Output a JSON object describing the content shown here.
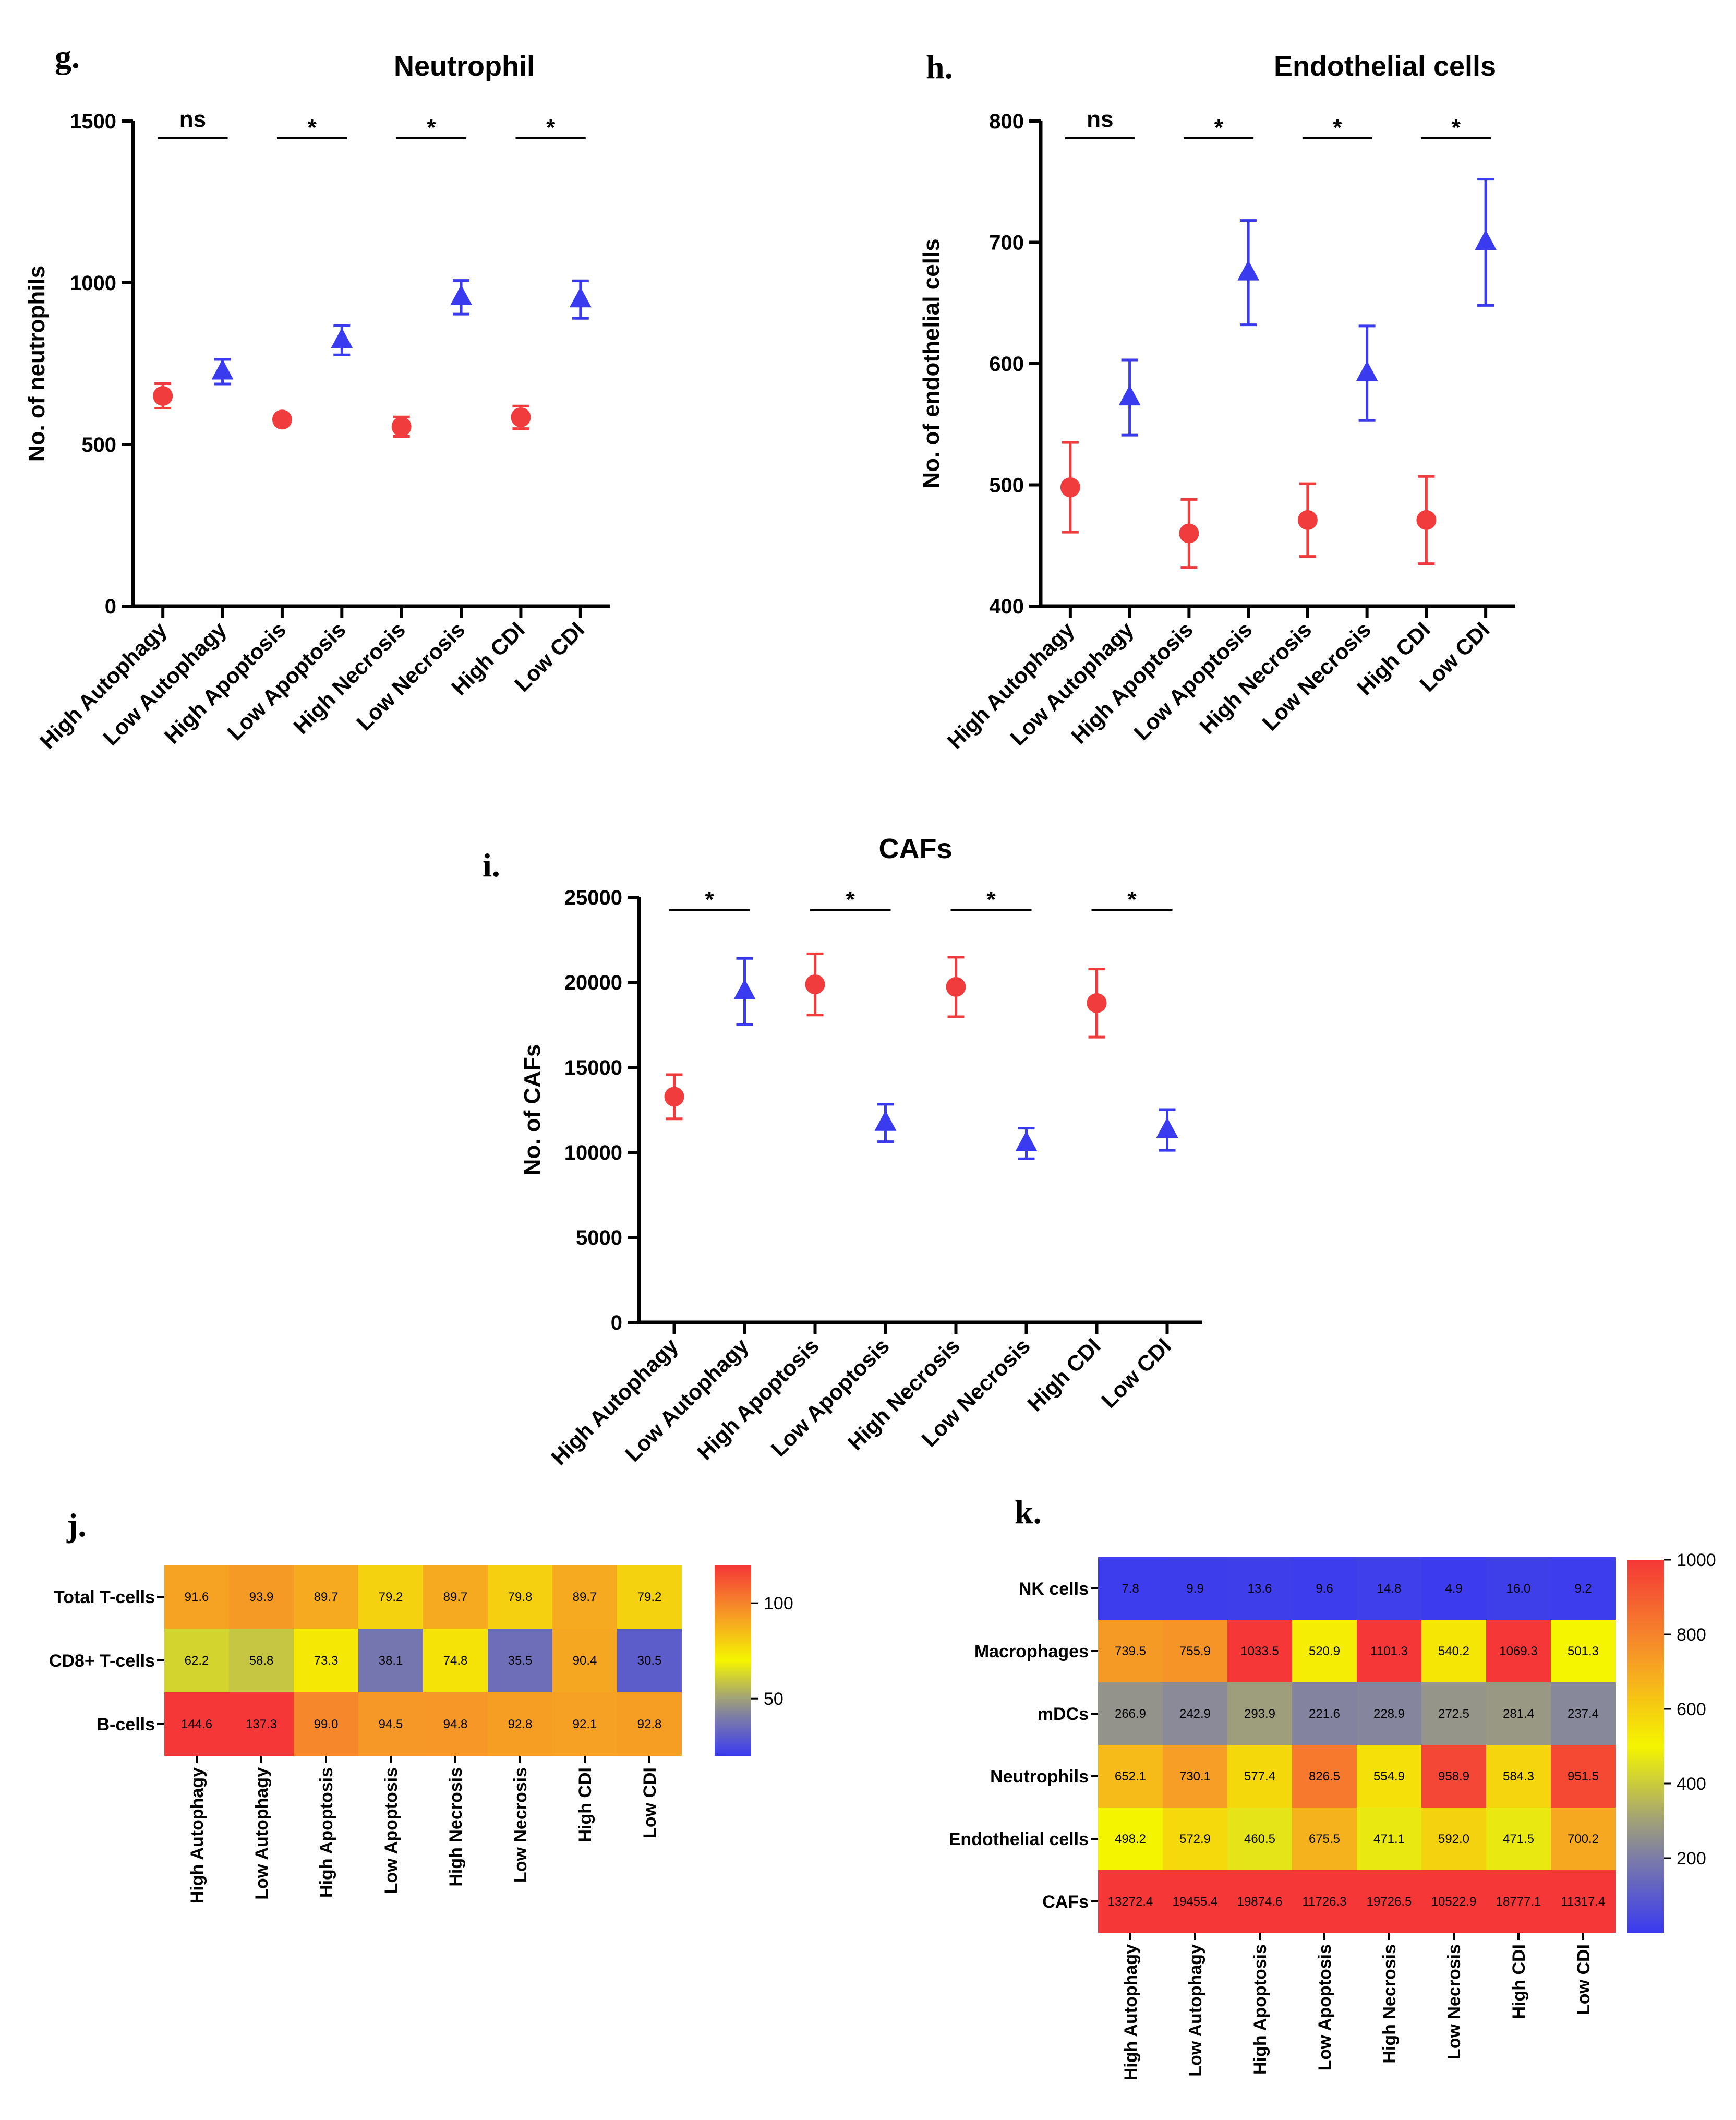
{
  "chart_data": [
    {
      "id": "g",
      "type": "scatter",
      "panel_label": "g.",
      "title": "Neutrophil",
      "ylabel": "No. of neutrophils",
      "xlabel": "",
      "ylim": [
        0,
        1500
      ],
      "yticks": [
        0,
        500,
        1000,
        1500
      ],
      "categories": [
        "High Autophagy",
        "Low Autophagy",
        "High Apoptosis",
        "Low Apoptosis",
        "High Necrosis",
        "Low Necrosis",
        "High CDI",
        "Low CDI"
      ],
      "points": [
        {
          "value": 650,
          "err": 38,
          "marker": "circle",
          "color": "#f03c3c"
        },
        {
          "value": 725,
          "err": 38,
          "marker": "triangle",
          "color": "#3a3aee"
        },
        {
          "value": 577,
          "err": 0,
          "marker": "circle",
          "color": "#f03c3c"
        },
        {
          "value": 822,
          "err": 45,
          "marker": "triangle",
          "color": "#3a3aee"
        },
        {
          "value": 555,
          "err": 30,
          "marker": "circle",
          "color": "#f03c3c"
        },
        {
          "value": 955,
          "err": 52,
          "marker": "triangle",
          "color": "#3a3aee"
        },
        {
          "value": 584,
          "err": 35,
          "marker": "circle",
          "color": "#f03c3c"
        },
        {
          "value": 948,
          "err": 58,
          "marker": "triangle",
          "color": "#3a3aee"
        }
      ],
      "significance": [
        "ns",
        "*",
        "*",
        "*"
      ]
    },
    {
      "id": "h",
      "type": "scatter",
      "panel_label": "h.",
      "title": "Endothelial cells",
      "ylabel": "No. of endothelial cells",
      "xlabel": "",
      "ylim": [
        400,
        800
      ],
      "yticks": [
        400,
        500,
        600,
        700,
        800
      ],
      "categories": [
        "High Autophagy",
        "Low Autophagy",
        "High Apoptosis",
        "Low Apoptosis",
        "High Necrosis",
        "Low Necrosis",
        "High CDI",
        "Low CDI"
      ],
      "points": [
        {
          "value": 498,
          "err": 37,
          "marker": "circle",
          "color": "#f03c3c"
        },
        {
          "value": 572,
          "err": 31,
          "marker": "triangle",
          "color": "#3a3aee"
        },
        {
          "value": 460,
          "err": 28,
          "marker": "circle",
          "color": "#f03c3c"
        },
        {
          "value": 675,
          "err": 43,
          "marker": "triangle",
          "color": "#3a3aee"
        },
        {
          "value": 471,
          "err": 30,
          "marker": "circle",
          "color": "#f03c3c"
        },
        {
          "value": 592,
          "err": 39,
          "marker": "triangle",
          "color": "#3a3aee"
        },
        {
          "value": 471,
          "err": 36,
          "marker": "circle",
          "color": "#f03c3c"
        },
        {
          "value": 700,
          "err": 52,
          "marker": "triangle",
          "color": "#3a3aee"
        }
      ],
      "significance": [
        "ns",
        "*",
        "*",
        "*"
      ]
    },
    {
      "id": "i",
      "type": "scatter",
      "panel_label": "i.",
      "title": "CAFs",
      "ylabel": "No. of CAFs",
      "xlabel": "",
      "ylim": [
        0,
        25000
      ],
      "yticks": [
        0,
        5000,
        10000,
        15000,
        20000,
        25000
      ],
      "categories": [
        "High Autophagy",
        "Low Autophagy",
        "High Apoptosis",
        "Low Apoptosis",
        "High Necrosis",
        "Low Necrosis",
        "High CDI",
        "Low CDI"
      ],
      "points": [
        {
          "value": 13272,
          "err": 1300,
          "marker": "circle",
          "color": "#f03c3c"
        },
        {
          "value": 19455,
          "err": 1950,
          "marker": "triangle",
          "color": "#3a3aee"
        },
        {
          "value": 19875,
          "err": 1800,
          "marker": "circle",
          "color": "#f03c3c"
        },
        {
          "value": 11726,
          "err": 1100,
          "marker": "triangle",
          "color": "#3a3aee"
        },
        {
          "value": 19727,
          "err": 1750,
          "marker": "circle",
          "color": "#f03c3c"
        },
        {
          "value": 10523,
          "err": 900,
          "marker": "triangle",
          "color": "#3a3aee"
        },
        {
          "value": 18777,
          "err": 2000,
          "marker": "circle",
          "color": "#f03c3c"
        },
        {
          "value": 11317,
          "err": 1200,
          "marker": "triangle",
          "color": "#3a3aee"
        }
      ],
      "significance": [
        "*",
        "*",
        "*",
        "*"
      ]
    },
    {
      "id": "j",
      "type": "heatmap",
      "panel_label": "j.",
      "columns": [
        "High Autophagy",
        "Low Autophagy",
        "High Apoptosis",
        "Low Apoptosis",
        "High Necrosis",
        "Low Necrosis",
        "High CDI",
        "Low CDI"
      ],
      "rows": [
        "Total T-cells",
        "CD8+ T-cells",
        "B-cells"
      ],
      "values": [
        [
          91.6,
          93.9,
          89.7,
          79.2,
          89.7,
          79.8,
          89.7,
          79.2
        ],
        [
          62.2,
          58.8,
          73.3,
          38.1,
          74.8,
          35.5,
          90.4,
          30.5
        ],
        [
          144.6,
          137.3,
          99.0,
          94.5,
          94.8,
          92.8,
          92.1,
          92.8
        ]
      ],
      "value_labels": [
        [
          "91.6",
          "93.9",
          "89.7",
          "79.2",
          "89.7",
          "79.8",
          "89.7",
          "79.2"
        ],
        [
          "62.2",
          "58.8",
          "73.3",
          "38.1",
          "74.8",
          "35.5",
          "90.4",
          "30.5"
        ],
        [
          "144.6",
          "137.3",
          "99.0",
          "94.5",
          "94.8",
          "92.8",
          "92.1",
          "92.8"
        ]
      ],
      "color_scale": {
        "min": 20,
        "max": 120,
        "ticks": [
          50,
          100
        ]
      }
    },
    {
      "id": "k",
      "type": "heatmap",
      "panel_label": "k.",
      "columns": [
        "High Autophagy",
        "Low Autophagy",
        "High Apoptosis",
        "Low Apoptosis",
        "High Necrosis",
        "Low Necrosis",
        "High CDI",
        "Low CDI"
      ],
      "rows": [
        "NK cells",
        "Macrophages",
        "mDCs",
        "Neutrophils",
        "Endothelial cells",
        "CAFs"
      ],
      "values": [
        [
          7.8,
          9.9,
          13.6,
          9.6,
          14.8,
          4.9,
          16.0,
          9.2
        ],
        [
          739.5,
          755.9,
          1033.5,
          520.9,
          1101.3,
          540.2,
          1069.3,
          501.3
        ],
        [
          266.9,
          242.9,
          293.9,
          221.6,
          228.9,
          272.5,
          281.4,
          237.4
        ],
        [
          652.1,
          730.1,
          577.4,
          826.5,
          554.9,
          958.9,
          584.3,
          951.5
        ],
        [
          498.2,
          572.9,
          460.5,
          675.5,
          471.1,
          592.0,
          471.5,
          700.2
        ],
        [
          13272.4,
          19455.4,
          19874.6,
          11726.3,
          19726.5,
          10522.9,
          18777.1,
          11317.4
        ]
      ],
      "value_labels": [
        [
          "7.8",
          "9.9",
          "13.6",
          "9.6",
          "14.8",
          "4.9",
          "16.0",
          "9.2"
        ],
        [
          "739.5",
          "755.9",
          "1033.5",
          "520.9",
          "1101.3",
          "540.2",
          "1069.3",
          "501.3"
        ],
        [
          "266.9",
          "242.9",
          "293.9",
          "221.6",
          "228.9",
          "272.5",
          "281.4",
          "237.4"
        ],
        [
          "652.1",
          "730.1",
          "577.4",
          "826.5",
          "554.9",
          "958.9",
          "584.3",
          "951.5"
        ],
        [
          "498.2",
          "572.9",
          "460.5",
          "675.5",
          "471.1",
          "592.0",
          "471.5",
          "700.2"
        ],
        [
          "13272.4",
          "19455.4",
          "19874.6",
          "11726.3",
          "19726.5",
          "10522.9",
          "18777.1",
          "11317.4"
        ]
      ],
      "color_scale": {
        "min": 0,
        "max": 1000,
        "ticks": [
          200,
          400,
          600,
          800,
          1000
        ]
      }
    }
  ]
}
